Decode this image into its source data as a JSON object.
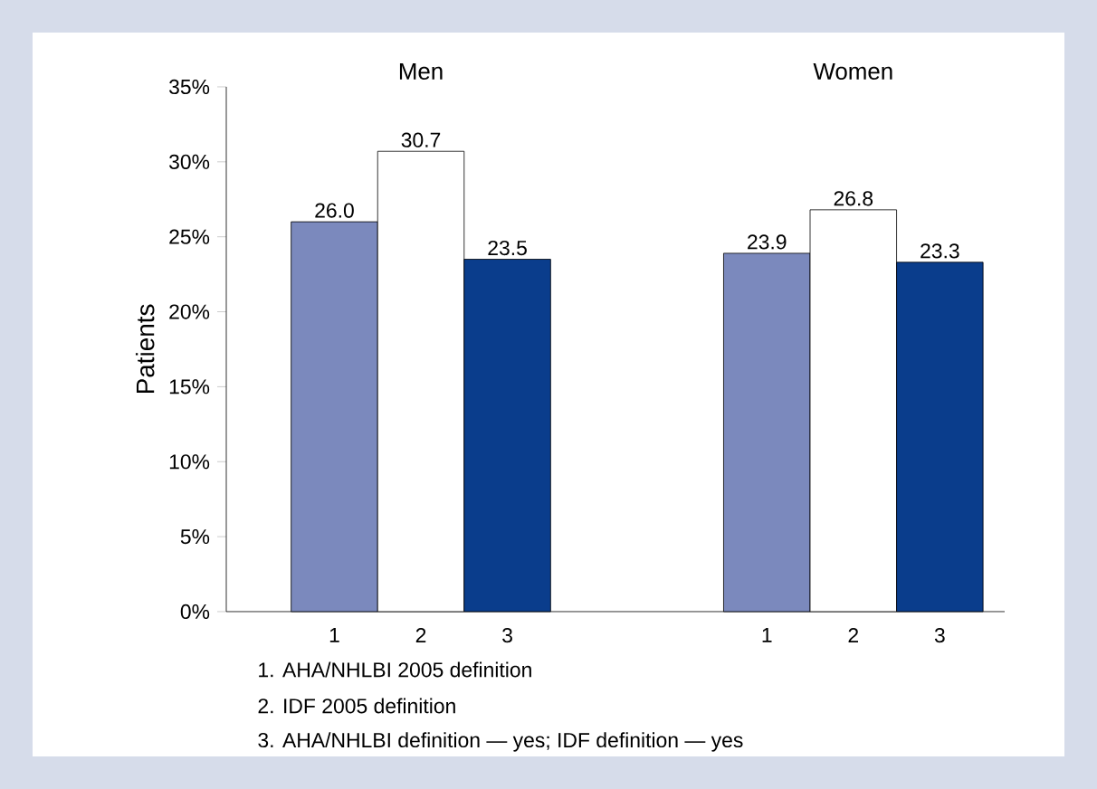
{
  "chart_data": {
    "type": "bar",
    "ylabel": "Patients",
    "categories": [
      "1",
      "2",
      "3",
      null,
      null,
      "1",
      "2",
      "3"
    ],
    "values": [
      26.0,
      30.7,
      23.5,
      null,
      null,
      23.9,
      26.8,
      23.3
    ],
    "colors": [
      "#7b89bd",
      "#ffffff",
      "#0a3d8c",
      null,
      null,
      "#7b89bd",
      "#ffffff",
      "#0a3d8c"
    ],
    "value_labels": [
      "26.0",
      "30.7",
      "23.5",
      null,
      null,
      "23.9",
      "26.8",
      "23.3"
    ],
    "ylim": [
      0,
      35
    ],
    "yticks": [
      {
        "value": 0,
        "label": "0%"
      },
      {
        "value": 5,
        "label": "5%"
      },
      {
        "value": 10,
        "label": "10%"
      },
      {
        "value": 15,
        "label": "15%"
      },
      {
        "value": 20,
        "label": "20%"
      },
      {
        "value": 25,
        "label": "25%"
      },
      {
        "value": 30,
        "label": "30%"
      },
      {
        "value": 35,
        "label": "35%"
      }
    ],
    "annotations": [
      "Men",
      "Women",
      "1. AHA/NHLBI 2005 definition",
      "2. IDF 2005 definition",
      "3. AHA/NHLBI definition — yes; IDF definition — yes"
    ]
  }
}
